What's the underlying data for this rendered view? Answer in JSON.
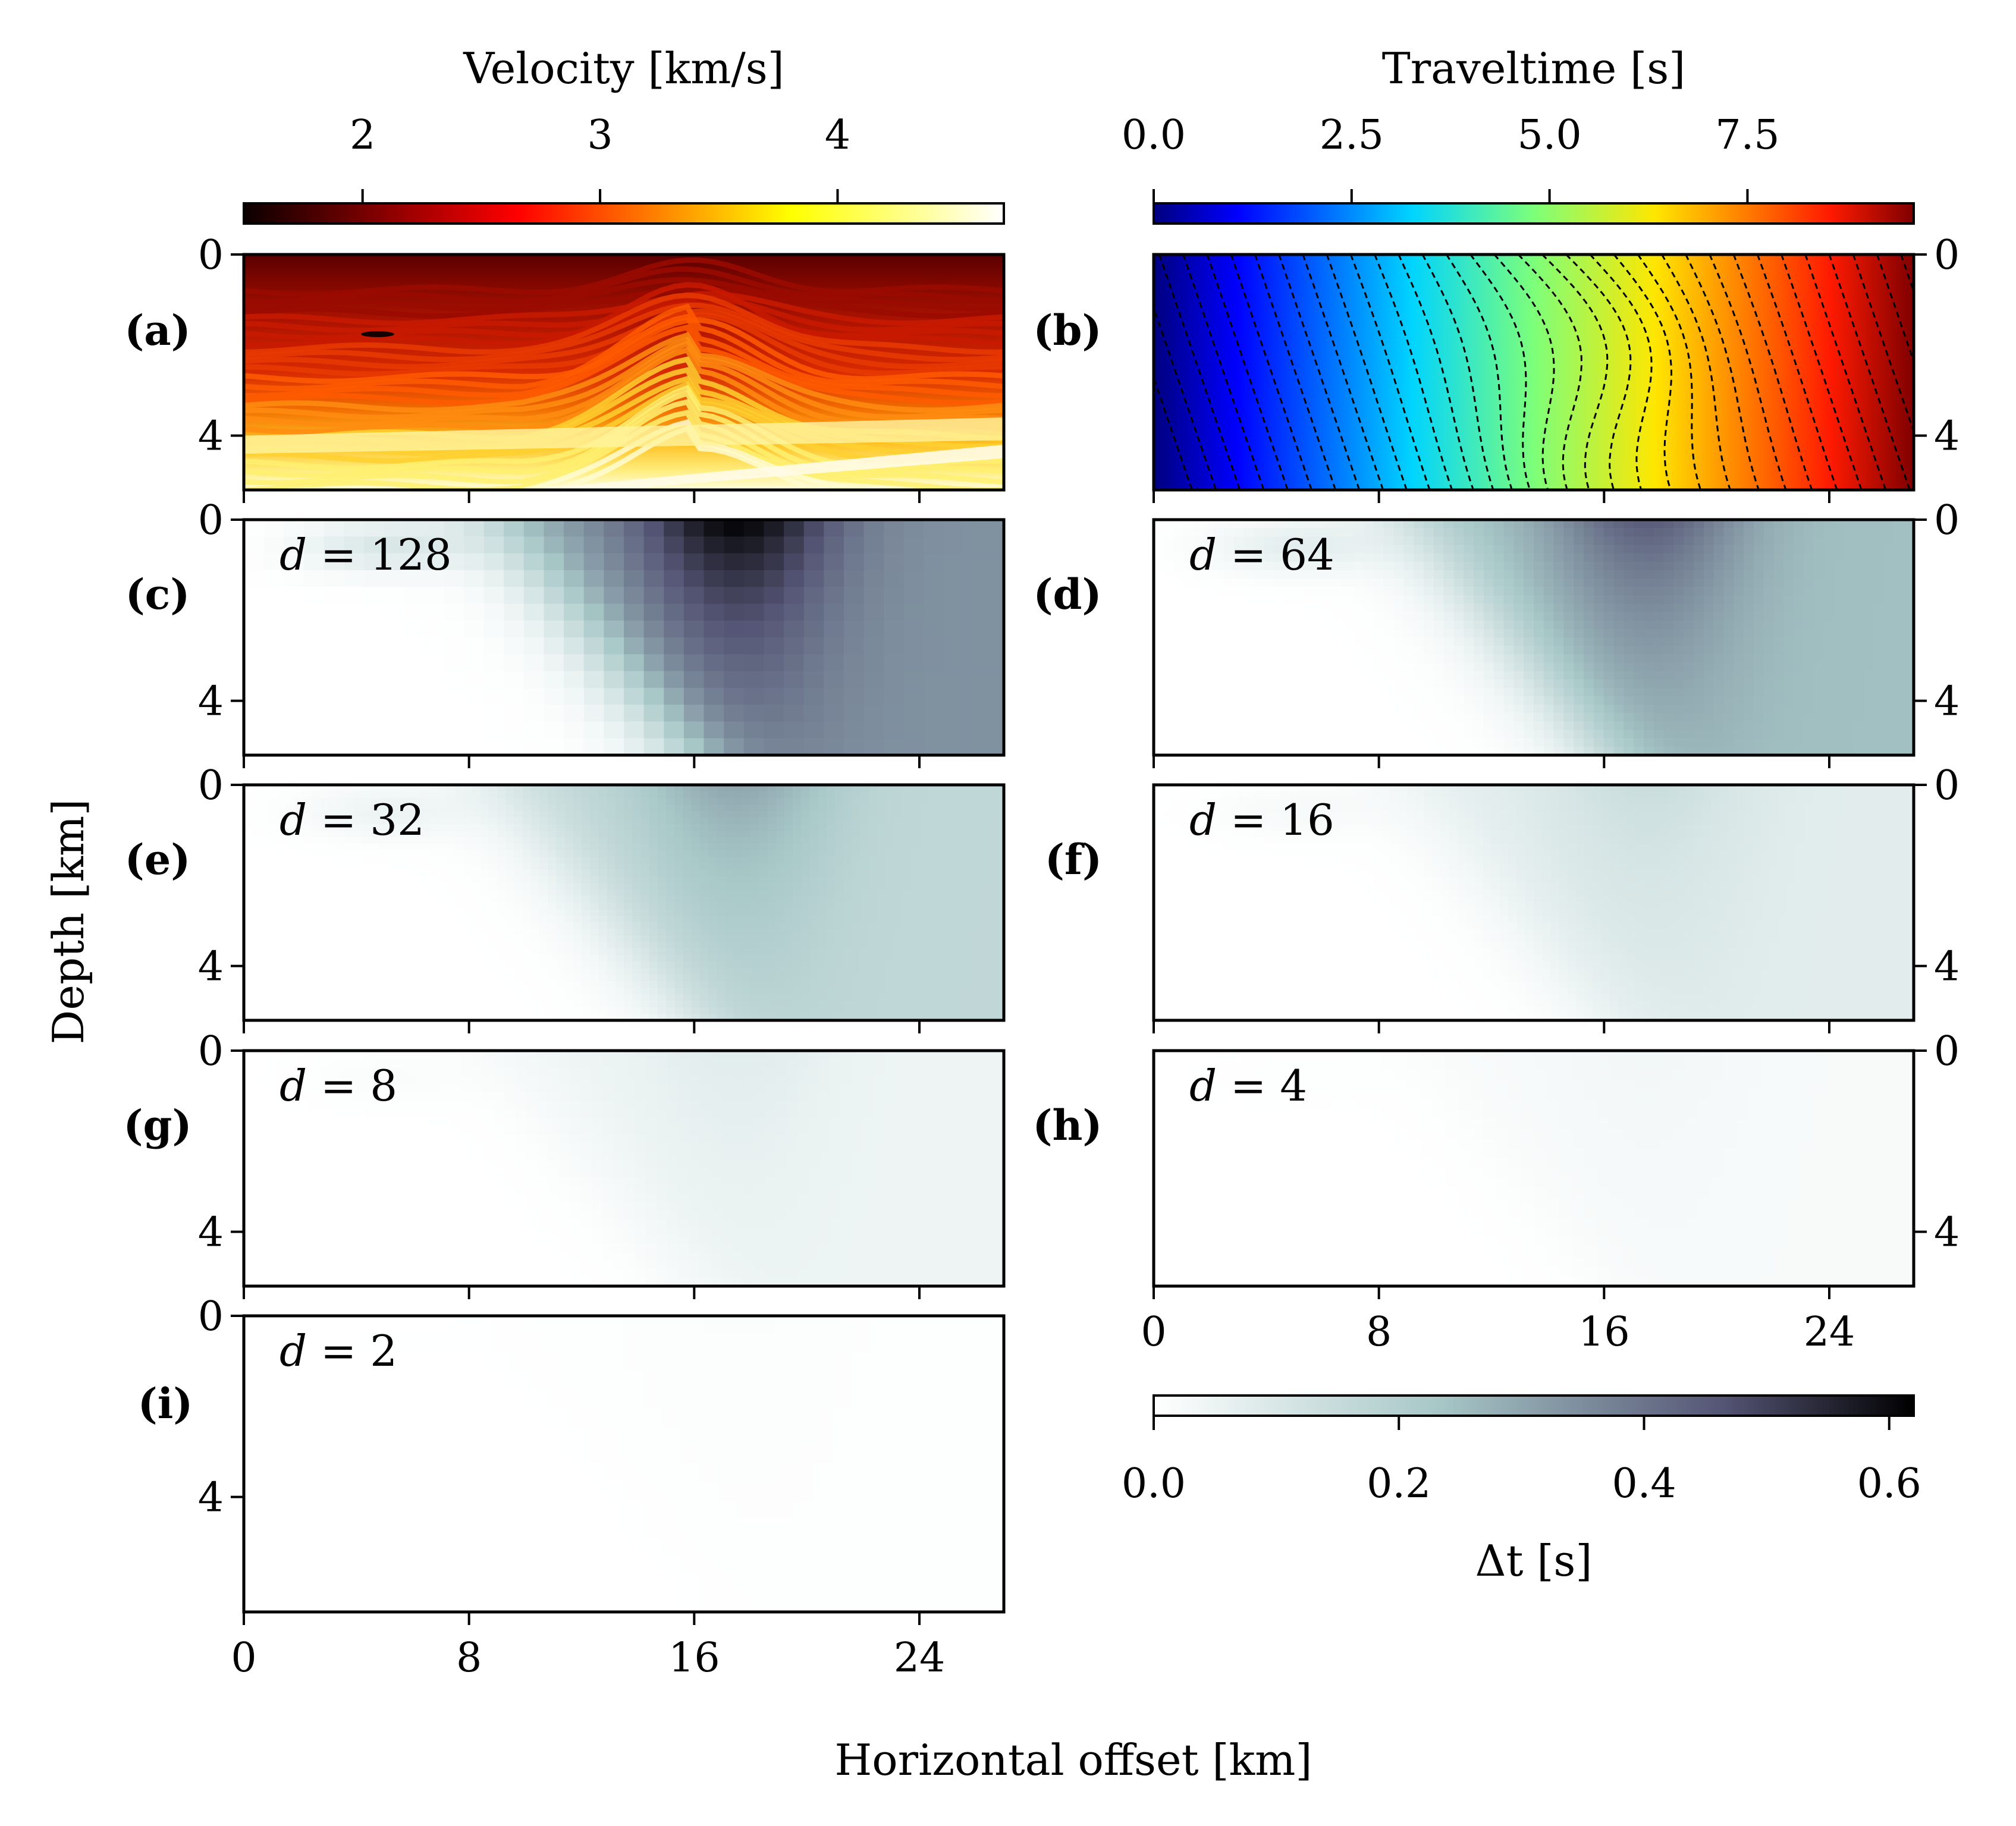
{
  "chart_data": [
    {
      "type": "heatmap",
      "panel_label": "(a)",
      "colorbar": {
        "label": "Velocity [km/s]",
        "ticks": [
          "2",
          "3",
          "4"
        ],
        "range": [
          1.5,
          4.7
        ],
        "colormap": "hot"
      },
      "xlim": [
        0,
        27
      ],
      "ylim": [
        0,
        5.2
      ],
      "y_ticks": [
        "0",
        "4"
      ]
    },
    {
      "type": "heatmap",
      "panel_label": "(b)",
      "colorbar": {
        "label": "Traveltime [s]",
        "ticks": [
          "0.0",
          "2.5",
          "5.0",
          "7.5"
        ],
        "range": [
          0,
          9.6
        ],
        "colormap": "jet"
      },
      "contours": "dashed black isochrons",
      "xlim": [
        0,
        27
      ],
      "ylim": [
        0,
        5.2
      ],
      "y_ticks": [
        "0",
        "4"
      ]
    },
    {
      "type": "heatmap",
      "panel_label": "(c)",
      "annotation_var": "d",
      "annotation_val": "128",
      "max_dt": 0.62
    },
    {
      "type": "heatmap",
      "panel_label": "(d)",
      "annotation_var": "d",
      "annotation_val": "64",
      "max_dt": 0.45
    },
    {
      "type": "heatmap",
      "panel_label": "(e)",
      "annotation_var": "d",
      "annotation_val": "32",
      "max_dt": 0.3
    },
    {
      "type": "heatmap",
      "panel_label": "(f)",
      "annotation_var": "d",
      "annotation_val": "16",
      "max_dt": 0.14
    },
    {
      "type": "heatmap",
      "panel_label": "(g)",
      "annotation_var": "d",
      "annotation_val": "8",
      "max_dt": 0.08
    },
    {
      "type": "heatmap",
      "panel_label": "(h)",
      "annotation_var": "d",
      "annotation_val": "4",
      "max_dt": 0.035
    },
    {
      "type": "heatmap",
      "panel_label": "(i)",
      "annotation_var": "d",
      "annotation_val": "2",
      "max_dt": 0.01
    }
  ],
  "error_colorbar": {
    "label": "Δt [s]",
    "ticks": [
      "0.0",
      "0.2",
      "0.4",
      "0.6"
    ],
    "range": [
      0,
      0.62
    ],
    "colormap": "bone_r"
  },
  "axes": {
    "xlabel": "Horizontal offset [km]",
    "ylabel": "Depth [km]",
    "x_ticks": [
      "0",
      "8",
      "16",
      "24"
    ],
    "y_ticks": [
      "0",
      "4"
    ]
  }
}
